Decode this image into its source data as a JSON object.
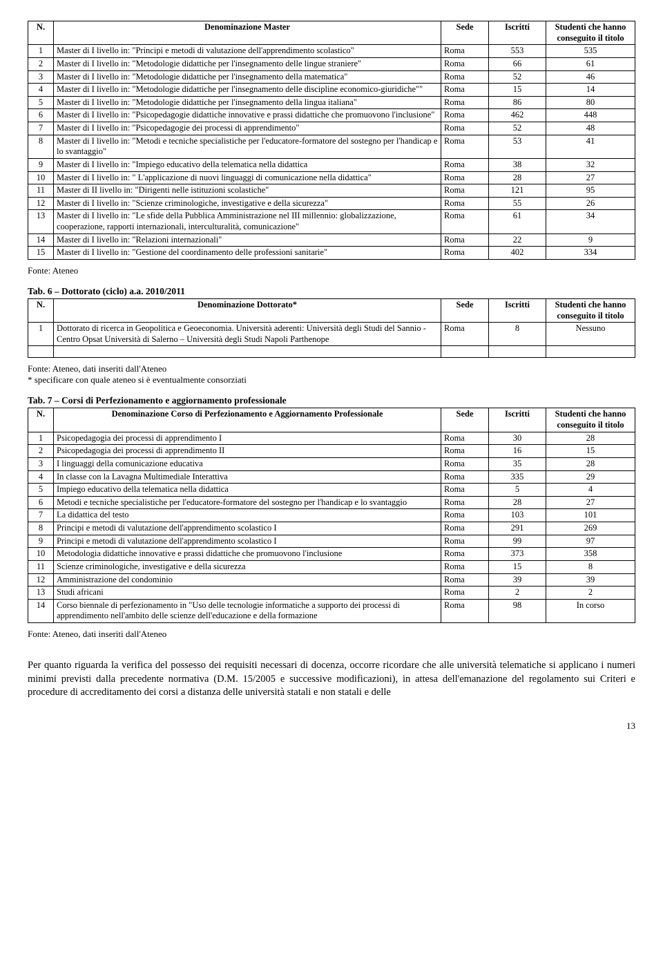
{
  "tab5": {
    "headers": {
      "n": "N.",
      "denom": "Denominazione Master",
      "sede": "Sede",
      "iscr": "Iscritti",
      "cons": "Studenti che hanno conseguito il titolo"
    },
    "rows": [
      {
        "n": "1",
        "denom": "Master di I livello in: \"Principi e metodi di valutazione dell'apprendimento scolastico\"",
        "sede": "Roma",
        "iscr": "553",
        "cons": "535"
      },
      {
        "n": "2",
        "denom": "Master di I livello in: \"Metodologie didattiche per l'insegnamento delle lingue straniere\"",
        "sede": "Roma",
        "iscr": "66",
        "cons": "61"
      },
      {
        "n": "3",
        "denom": "Master di I livello in: \"Metodologie didattiche per l'insegnamento della matematica\"",
        "sede": "Roma",
        "iscr": "52",
        "cons": "46"
      },
      {
        "n": "4",
        "denom": "Master di I livello in: \"Metodologie didattiche per l'insegnamento delle discipline economico-giuridiche\"\"",
        "sede": "Roma",
        "iscr": "15",
        "cons": "14"
      },
      {
        "n": "5",
        "denom": "Master di I livello in: \"Metodologie didattiche per l'insegnamento della lingua italiana\"",
        "sede": "Roma",
        "iscr": "86",
        "cons": "80"
      },
      {
        "n": "6",
        "denom": "Master di I livello in: \"Psicopedagogie didattiche innovative e prassi didattiche che promuovono l'inclusione\"",
        "sede": "Roma",
        "iscr": "462",
        "cons": "448"
      },
      {
        "n": "7",
        "denom": "Master di I livello in: \"Psicopedagogie dei processi di apprendimento\"",
        "sede": "Roma",
        "iscr": "52",
        "cons": "48"
      },
      {
        "n": "8",
        "denom": "Master di I livello in: \"Metodi e tecniche specialistiche per l'educatore-formatore del sostegno per l'handicap e lo svantaggio\"",
        "sede": "Roma",
        "iscr": "53",
        "cons": "41"
      },
      {
        "n": "9",
        "denom": "Master di I livello in: \"Impiego educativo della telematica nella didattica",
        "sede": "Roma",
        "iscr": "38",
        "cons": "32"
      },
      {
        "n": "10",
        "denom": "Master di I livello in: \" L'applicazione di nuovi linguaggi di comunicazione nella didattica\"",
        "sede": "Roma",
        "iscr": "28",
        "cons": "27"
      },
      {
        "n": "11",
        "denom": "Master di II livello in: \"Dirigenti nelle istituzioni scolastiche\"",
        "sede": "Roma",
        "iscr": "121",
        "cons": "95"
      },
      {
        "n": "12",
        "denom": "Master di I livello in: \"Scienze criminologiche, investigative e della sicurezza\"",
        "sede": "Roma",
        "iscr": "55",
        "cons": "26"
      },
      {
        "n": "13",
        "denom": "Master  di I livello in: \"Le sfide della Pubblica Amministrazione nel III millennio: globalizzazione, cooperazione, rapporti internazionali, interculturalità, comunicazione\"",
        "sede": "Roma",
        "iscr": "61",
        "cons": "34"
      },
      {
        "n": "14",
        "denom": "Master di I livello in: \"Relazioni internazionali\"",
        "sede": "Roma",
        "iscr": "22",
        "cons": "9"
      },
      {
        "n": "15",
        "denom": "Master di I livello in: \"Gestione del coordinamento delle professioni sanitarie\"",
        "sede": "Roma",
        "iscr": "402",
        "cons": "334"
      }
    ],
    "fonte": "Fonte: Ateneo"
  },
  "tab6": {
    "title": "Tab. 6 – Dottorato (ciclo) a.a. 2010/2011",
    "headers": {
      "n": "N.",
      "denom": "Denominazione Dottorato*",
      "sede": "Sede",
      "iscr": "Iscritti",
      "cons": "Studenti che hanno conseguito il titolo"
    },
    "rows": [
      {
        "n": "1",
        "denom": "Dottorato di ricerca in Geopolitica e Geoeconomia. Università aderenti: Università degli Studi del Sannio - Centro Opsat Università di Salerno – Università degli Studi Napoli Parthenope",
        "sede": "Roma",
        "iscr": "8",
        "cons": "Nessuno"
      }
    ],
    "fonte": "Fonte: Ateneo, dati inseriti dall'Ateneo",
    "note": "* specificare con quale ateneo si è eventualmente consorziati"
  },
  "tab7": {
    "title": "Tab. 7 – Corsi di Perfezionamento e aggiornamento professionale",
    "headers": {
      "n": "N.",
      "denom": "Denominazione Corso di Perfezionamento e Aggiornamento Professionale",
      "sede": "Sede",
      "iscr": "Iscritti",
      "cons": "Studenti che hanno conseguito il titolo"
    },
    "rows": [
      {
        "n": "1",
        "denom": "Psicopedagogia dei processi di apprendimento I",
        "sede": "Roma",
        "iscr": "30",
        "cons": "28"
      },
      {
        "n": "2",
        "denom": "Psicopedagogia dei processi di apprendimento II",
        "sede": "Roma",
        "iscr": "16",
        "cons": "15"
      },
      {
        "n": "3",
        "denom": "I linguaggi della comunicazione educativa",
        "sede": "Roma",
        "iscr": "35",
        "cons": "28"
      },
      {
        "n": "4",
        "denom": "In classe con la Lavagna Multimediale Interattiva",
        "sede": "Roma",
        "iscr": "335",
        "cons": "29"
      },
      {
        "n": "5",
        "denom": "Impiego educativo della telematica nella didattica",
        "sede": "Roma",
        "iscr": "5",
        "cons": "4"
      },
      {
        "n": "6",
        "denom": "Metodi e tecniche specialistiche per l'educatore-formatore del sostegno per l'handicap e lo svantaggio",
        "sede": "Roma",
        "iscr": "28",
        "cons": "27"
      },
      {
        "n": "7",
        "denom": "La didattica del testo",
        "sede": "Roma",
        "iscr": "103",
        "cons": "101"
      },
      {
        "n": "8",
        "denom": "Principi e metodi di valutazione dell'apprendimento scolastico I",
        "sede": "Roma",
        "iscr": "291",
        "cons": "269"
      },
      {
        "n": "9",
        "denom": "Principi e metodi di valutazione dell'apprendimento scolastico I",
        "sede": "Roma",
        "iscr": "99",
        "cons": "97"
      },
      {
        "n": "10",
        "denom": "Metodologia didattiche innovative e prassi didattiche che promuovono l'inclusione",
        "sede": "Roma",
        "iscr": "373",
        "cons": "358"
      },
      {
        "n": "11",
        "denom": "Scienze criminologiche, investigative e della sicurezza",
        "sede": "Roma",
        "iscr": "15",
        "cons": "8"
      },
      {
        "n": "12",
        "denom": "Amministrazione del condominio",
        "sede": "Roma",
        "iscr": "39",
        "cons": "39"
      },
      {
        "n": "13",
        "denom": "Studi africani",
        "sede": "Roma",
        "iscr": "2",
        "cons": "2"
      },
      {
        "n": "14",
        "denom": "Corso biennale di perfezionamento in \"Uso delle tecnologie informatiche a supporto dei processi di apprendimento nell'ambito delle scienze dell'educazione e della formazione",
        "sede": "Roma",
        "iscr": "98",
        "cons": "In corso"
      }
    ],
    "fonte": "Fonte: Ateneo, dati inseriti dall'Ateneo"
  },
  "paragraph": "Per quanto riguarda la verifica del possesso dei requisiti necessari di docenza, occorre ricordare che alle università telematiche si applicano i numeri minimi previsti dalla precedente normativa (D.M. 15/2005 e successive modificazioni), in attesa dell'emanazione del regolamento sui Criteri e procedure di accreditamento dei corsi a distanza delle università statali e non statali e delle",
  "page_number": "13"
}
